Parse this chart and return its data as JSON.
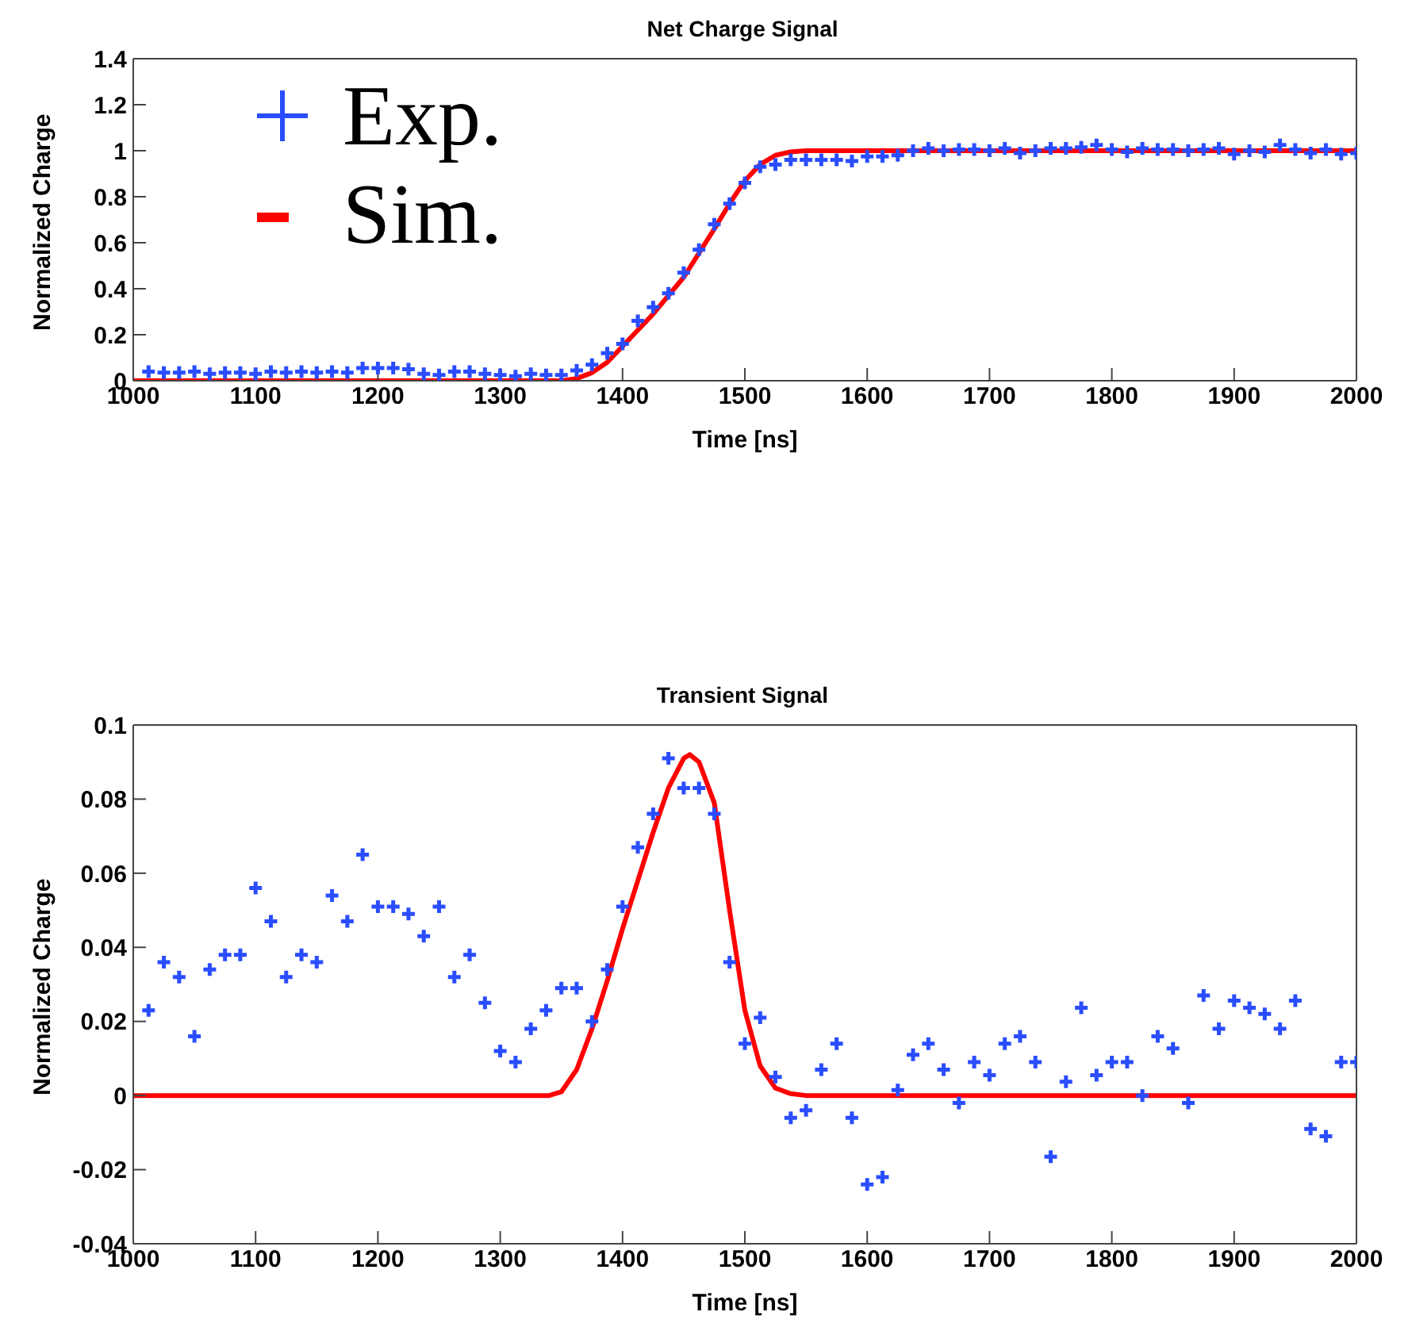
{
  "chart_data": [
    {
      "type": "scatter",
      "title": "Net Charge Signal",
      "xlabel": "Time [ns]",
      "ylabel": "Normalized Charge",
      "xlim": [
        1000,
        2000
      ],
      "xticks": [
        1000,
        1100,
        1200,
        1300,
        1400,
        1500,
        1600,
        1700,
        1800,
        1900,
        2000
      ],
      "ylim": [
        0,
        1.4
      ],
      "yticks": [
        0,
        0.2,
        0.4,
        0.6,
        0.8,
        1,
        1.2,
        1.4
      ],
      "grid": false,
      "legend": "top left",
      "series": [
        {
          "name": "Exp.",
          "marker": "cross",
          "color": "#2a4dff",
          "x": [
            1012.5,
            1025,
            1037.5,
            1050,
            1062.5,
            1075,
            1087.5,
            1100,
            1112.5,
            1125,
            1137.5,
            1150,
            1162.5,
            1175,
            1187.5,
            1200,
            1212.5,
            1225,
            1237.5,
            1250,
            1262.5,
            1275,
            1287.5,
            1300,
            1312.5,
            1325,
            1337.5,
            1350,
            1362.5,
            1375,
            1387.5,
            1400,
            1412.5,
            1425,
            1437.5,
            1450,
            1462.5,
            1475,
            1487.5,
            1500,
            1512.5,
            1525,
            1537.5,
            1550,
            1562.5,
            1575,
            1587.5,
            1600,
            1612.5,
            1625,
            1637.5,
            1650,
            1662.5,
            1675,
            1687.5,
            1700,
            1712.5,
            1725,
            1737.5,
            1750,
            1762.5,
            1775,
            1787.5,
            1800,
            1812.5,
            1825,
            1837.5,
            1850,
            1862.5,
            1875,
            1887.5,
            1900,
            1912.5,
            1925,
            1937.5,
            1950,
            1962.5,
            1975,
            1987.5,
            2000
          ],
          "values": [
            0.04,
            0.035,
            0.035,
            0.04,
            0.03,
            0.035,
            0.035,
            0.03,
            0.04,
            0.035,
            0.04,
            0.035,
            0.04,
            0.035,
            0.055,
            0.055,
            0.055,
            0.05,
            0.03,
            0.025,
            0.04,
            0.04,
            0.03,
            0.025,
            0.02,
            0.03,
            0.025,
            0.025,
            0.045,
            0.07,
            0.12,
            0.16,
            0.26,
            0.32,
            0.38,
            0.47,
            0.57,
            0.68,
            0.77,
            0.86,
            0.93,
            0.94,
            0.96,
            0.96,
            0.96,
            0.96,
            0.955,
            0.975,
            0.975,
            0.98,
            1.0,
            1.01,
            1.0,
            1.005,
            1.005,
            1.0,
            1.01,
            0.99,
            1.0,
            1.01,
            1.01,
            1.015,
            1.025,
            1.005,
            0.995,
            1.01,
            1.005,
            1.005,
            1.0,
            1.005,
            1.01,
            0.985,
            1.0,
            0.995,
            1.025,
            1.005,
            0.99,
            1.005,
            0.985,
            0.99
          ]
        },
        {
          "name": "Sim.",
          "type": "line",
          "marker": "none",
          "line_style": "solid",
          "color": "#ff0000",
          "x": [
            1000,
            1350,
            1362.5,
            1375,
            1387.5,
            1400,
            1425,
            1450,
            1475,
            1487.5,
            1500,
            1512.5,
            1525,
            1537.5,
            1550,
            2000
          ],
          "values": [
            0,
            0,
            0.01,
            0.035,
            0.08,
            0.15,
            0.29,
            0.45,
            0.66,
            0.77,
            0.87,
            0.94,
            0.98,
            0.995,
            1,
            1
          ]
        }
      ]
    },
    {
      "type": "scatter",
      "title": "Transient Signal",
      "xlabel": "Time [ns]",
      "ylabel": "Normalized Charge",
      "xlim": [
        1000,
        2000
      ],
      "xticks": [
        1000,
        1100,
        1200,
        1300,
        1400,
        1500,
        1600,
        1700,
        1800,
        1900,
        2000
      ],
      "ylim": [
        -0.04,
        0.1
      ],
      "yticks": [
        -0.04,
        -0.02,
        0,
        0.02,
        0.04,
        0.06,
        0.08,
        0.1
      ],
      "grid": false,
      "legend": false,
      "series": [
        {
          "marker": "cross",
          "color": "#2a4dff",
          "x": [
            1012.5,
            1025,
            1037.5,
            1050,
            1062.5,
            1075,
            1087.5,
            1100,
            1112.5,
            1125,
            1137.5,
            1150,
            1162.5,
            1175,
            1187.5,
            1200,
            1212.5,
            1225,
            1237.5,
            1250,
            1262.5,
            1275,
            1287.5,
            1300,
            1312.5,
            1325,
            1337.5,
            1350,
            1362.5,
            1375,
            1387.5,
            1400,
            1412.5,
            1425,
            1437.5,
            1450,
            1462.5,
            1475,
            1487.5,
            1500,
            1512.5,
            1525,
            1537.5,
            1550,
            1562.5,
            1575,
            1587.5,
            1600,
            1612.5,
            1625,
            1637.5,
            1650,
            1662.5,
            1675,
            1687.5,
            1700,
            1712.5,
            1725,
            1737.5,
            1750,
            1762.5,
            1775,
            1787.5,
            1800,
            1812.5,
            1825,
            1837.5,
            1850,
            1862.5,
            1875,
            1887.5,
            1900,
            1912.5,
            1925,
            1937.5,
            1950,
            1962.5,
            1975,
            1987.5,
            2000
          ],
          "values": [
            0.023,
            0.036,
            0.032,
            0.016,
            0.034,
            0.038,
            0.038,
            0.056,
            0.047,
            0.032,
            0.038,
            0.036,
            0.054,
            0.047,
            0.065,
            0.051,
            0.051,
            0.049,
            0.043,
            0.051,
            0.032,
            0.038,
            0.025,
            0.012,
            0.009,
            0.018,
            0.023,
            0.029,
            0.029,
            0.02,
            0.034,
            0.051,
            0.067,
            0.076,
            0.091,
            0.083,
            0.083,
            0.076,
            0.036,
            0.014,
            0.021,
            0.005,
            -0.006,
            -0.004,
            0.007,
            0.014,
            -0.006,
            -0.024,
            -0.022,
            0.0015,
            0.011,
            0.014,
            0.007,
            -0.002,
            0.009,
            0.0055,
            0.014,
            0.016,
            0.009,
            -0.0165,
            0.0037,
            0.0237,
            0.0055,
            0.009,
            0.009,
            0,
            0.016,
            0.0127,
            -0.002,
            0.027,
            0.018,
            0.0256,
            0.0237,
            0.022,
            0.018,
            0.0256,
            -0.009,
            -0.011,
            0.009,
            0.009
          ]
        },
        {
          "type": "line",
          "marker": "none",
          "line_style": "solid",
          "color": "#ff0000",
          "x": [
            1000,
            1340,
            1350,
            1362.5,
            1375,
            1387.5,
            1400,
            1412.5,
            1425,
            1437.5,
            1450,
            1455,
            1462.5,
            1475,
            1487.5,
            1500,
            1512.5,
            1525,
            1537.5,
            1550,
            2000
          ],
          "values": [
            0,
            0,
            0.001,
            0.007,
            0.018,
            0.031,
            0.045,
            0.058,
            0.071,
            0.083,
            0.091,
            0.092,
            0.09,
            0.079,
            0.05,
            0.023,
            0.008,
            0.002,
            0.0005,
            0,
            0
          ]
        }
      ]
    }
  ]
}
